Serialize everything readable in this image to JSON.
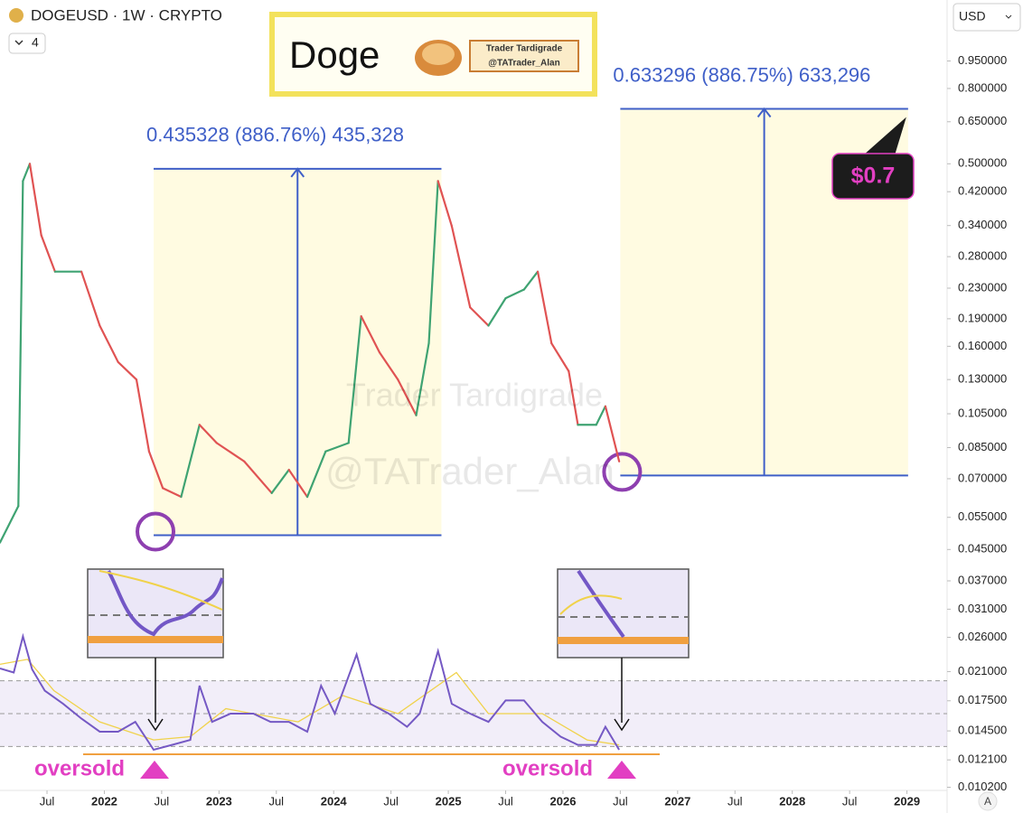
{
  "header": {
    "symbol": "DOGEUSD · 1W · CRYPTO",
    "indicator_count": 4,
    "currency": "USD",
    "scale_mode": "A"
  },
  "chart_data": {
    "type": "line",
    "title": "Doge",
    "logo_texts": [
      "Trader Tardigrade",
      "@TATrader_Alan"
    ],
    "watermark": [
      "Trader Tardigrade",
      "@TATrader_Alan"
    ],
    "x": [
      2021.09,
      2021.25,
      2021.29,
      2021.35,
      2021.45,
      2021.57,
      2021.8,
      2021.96,
      2022.12,
      2022.28,
      2022.39,
      2022.51,
      2022.67,
      2022.83,
      2022.98,
      2023.22,
      2023.46,
      2023.61,
      2023.77,
      2023.93,
      2024.13,
      2024.24,
      2024.4,
      2024.56,
      2024.72,
      2024.83,
      2024.91,
      2025.03,
      2025.19,
      2025.35,
      2025.5,
      2025.66,
      2025.78,
      2025.9,
      2026.05,
      2026.13,
      2026.29,
      2026.37,
      2026.49
    ],
    "series": [
      {
        "color": "#e05353",
        "up_color": "#3fa372",
        "values": [
          0.047,
          0.059,
          0.449,
          0.5,
          0.32,
          0.255,
          0.255,
          0.182,
          0.145,
          0.13,
          0.083,
          0.066,
          0.0625,
          0.098,
          0.0875,
          0.078,
          0.064,
          0.074,
          0.0625,
          0.083,
          0.0875,
          0.193,
          0.154,
          0.13,
          0.104,
          0.163,
          0.449,
          0.339,
          0.204,
          0.182,
          0.216,
          0.228,
          0.255,
          0.163,
          0.137,
          0.098,
          0.098,
          0.11,
          0.078
        ]
      }
    ],
    "xlim": [
      2021.09,
      2029.35
    ],
    "xticks": [
      {
        "value": 2021.5,
        "label": "Jul"
      },
      2022,
      {
        "value": 2022.5,
        "label": "Jul"
      },
      2023,
      {
        "value": 2023.5,
        "label": "Jul"
      },
      2024,
      {
        "value": 2024.5,
        "label": "Jul"
      },
      2025,
      {
        "value": 2025.5,
        "label": "Jul"
      },
      2026,
      {
        "value": 2026.5,
        "label": "Jul"
      },
      2027,
      {
        "value": 2027.5,
        "label": "Jul"
      },
      2028,
      {
        "value": 2028.5,
        "label": "Jul"
      },
      2029
    ],
    "log_scale": true,
    "ylim": [
      0.01,
      1.39
    ],
    "yticks": [
      {
        "value": 0.95,
        "label": "0.950000"
      },
      {
        "value": 0.8,
        "label": "0.800000"
      },
      {
        "value": 0.65,
        "label": "0.650000"
      },
      {
        "value": 0.5,
        "label": "0.500000"
      },
      {
        "value": 0.42,
        "label": "0.420000"
      },
      {
        "value": 0.34,
        "label": "0.340000"
      },
      {
        "value": 0.28,
        "label": "0.280000"
      },
      {
        "value": 0.23,
        "label": "0.230000"
      },
      {
        "value": 0.19,
        "label": "0.190000"
      },
      {
        "value": 0.16,
        "label": "0.160000"
      },
      {
        "value": 0.13,
        "label": "0.130000"
      },
      {
        "value": 0.105,
        "label": "0.105000"
      },
      {
        "value": 0.085,
        "label": "0.085000"
      },
      {
        "value": 0.07,
        "label": "0.070000"
      },
      {
        "value": 0.055,
        "label": "0.055000"
      },
      {
        "value": 0.045,
        "label": "0.045000"
      },
      {
        "value": 0.037,
        "label": "0.037000"
      },
      {
        "value": 0.031,
        "label": "0.031000"
      },
      {
        "value": 0.026,
        "label": "0.026000"
      },
      {
        "value": 0.021,
        "label": "0.021000"
      },
      {
        "value": 0.0175,
        "label": "0.017500"
      },
      {
        "value": 0.0145,
        "label": "0.014500"
      },
      {
        "value": 0.0121,
        "label": "0.012100"
      },
      {
        "value": 0.0102,
        "label": "0.010200"
      }
    ],
    "measures": [
      {
        "x_from": 2022.43,
        "x_to": 2024.94,
        "from": 0.0492,
        "change": 0.435328,
        "label": "0.435328 (886.76%) 435,328",
        "color": "#3f5fc8"
      },
      {
        "x_from": 2026.5,
        "x_to": 2029.01,
        "from": 0.0714,
        "change": 0.633296,
        "label": "0.633296 (886.75%) 633,296",
        "color": "#3f5fc8"
      }
    ],
    "target": {
      "label": "$0.7",
      "value": 0.7
    },
    "rsi": {
      "x": [
        2021.09,
        2021.21,
        2021.29,
        2021.37,
        2021.48,
        2021.64,
        2021.8,
        2021.96,
        2022.12,
        2022.27,
        2022.43,
        2022.59,
        2022.75,
        2022.83,
        2022.94,
        2023.1,
        2023.3,
        2023.45,
        2023.61,
        2023.77,
        2023.89,
        2024.01,
        2024.2,
        2024.32,
        2024.48,
        2024.64,
        2024.75,
        2024.91,
        2025.03,
        2025.19,
        2025.35,
        2025.5,
        2025.66,
        2025.82,
        2025.98,
        2026.13,
        2026.29,
        2026.37,
        2026.49
      ],
      "values": [
        77.5,
        75,
        97,
        77,
        64,
        56,
        47,
        39,
        39,
        45,
        28,
        31,
        34,
        67,
        45,
        50,
        50,
        45,
        45,
        39,
        67,
        50,
        86,
        56,
        50,
        42,
        50,
        88,
        56,
        50,
        45,
        58,
        58,
        45,
        36,
        31,
        31,
        42,
        28
      ],
      "color": "#7559c4",
      "ma": {
        "x": [
          2021.09,
          2021.33,
          2021.56,
          2021.96,
          2022.43,
          2022.75,
          2023.06,
          2023.69,
          2024.08,
          2024.56,
          2025.07,
          2025.35,
          2025.82,
          2026.21,
          2026.49
        ],
        "values": [
          80,
          83,
          64,
          45,
          34,
          36,
          53,
          45,
          61,
          50,
          75,
          50,
          50,
          34,
          31
        ],
        "color": "#f0d24a"
      },
      "ylim": [
        0,
        100
      ],
      "levels": [
        30,
        50,
        70
      ]
    },
    "oversold_labels": [
      "oversold",
      "oversold"
    ]
  }
}
